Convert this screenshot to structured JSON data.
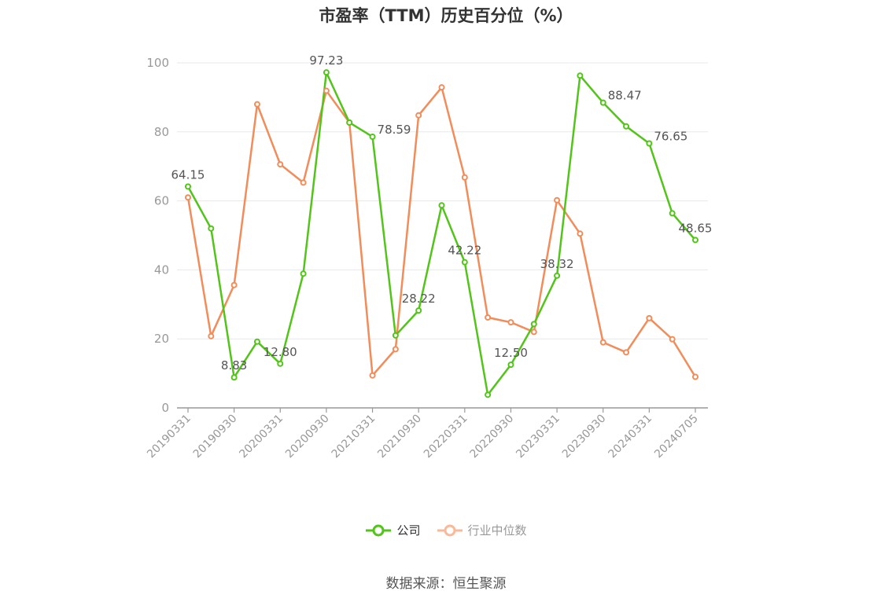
{
  "chart_data": {
    "type": "line",
    "title": "市盈率（TTM）历史百分位（%）",
    "xlabel": "",
    "ylabel": "",
    "ylim": [
      0,
      100
    ],
    "yticks": [
      0,
      20,
      40,
      60,
      80,
      100
    ],
    "x": [
      "20190331",
      "20190630",
      "20190930",
      "20191231",
      "20200331",
      "20200630",
      "20200930",
      "20201231",
      "20210331",
      "20210630",
      "20210930",
      "20211231",
      "20220331",
      "20220630",
      "20220930",
      "20221231",
      "20230331",
      "20230630",
      "20230930",
      "20231231",
      "20240331",
      "20240630",
      "20240705"
    ],
    "xticks_labeled": [
      "20190331",
      "20190930",
      "20200331",
      "20200930",
      "20210331",
      "20210930",
      "20220331",
      "20220930",
      "20230331",
      "20230930",
      "20240331",
      "20240705"
    ],
    "grid": true,
    "legend_position": "bottom",
    "series": [
      {
        "name": "公司",
        "color": "#52c41a",
        "values": [
          64.15,
          52.0,
          8.83,
          19.2,
          12.8,
          38.9,
          97.23,
          82.7,
          78.59,
          21.0,
          28.22,
          58.7,
          42.22,
          3.8,
          12.5,
          24.3,
          38.32,
          96.3,
          88.47,
          81.6,
          76.65,
          56.4,
          48.65
        ],
        "data_labels": [
          {
            "index": 0,
            "text": "64.15"
          },
          {
            "index": 2,
            "text": "8.83"
          },
          {
            "index": 4,
            "text": "12.80"
          },
          {
            "index": 6,
            "text": "97.23"
          },
          {
            "index": 8,
            "text": "78.59"
          },
          {
            "index": 10,
            "text": "28.22"
          },
          {
            "index": 12,
            "text": "42.22"
          },
          {
            "index": 14,
            "text": "12.50"
          },
          {
            "index": 16,
            "text": "38.32"
          },
          {
            "index": 18,
            "text": "88.47"
          },
          {
            "index": 20,
            "text": "76.65"
          },
          {
            "index": 22,
            "text": "48.65"
          }
        ]
      },
      {
        "name": "行业中位数",
        "color": "#f28c5a",
        "values": [
          61.0,
          20.8,
          35.6,
          88.0,
          70.6,
          65.3,
          91.9,
          82.7,
          9.4,
          17.0,
          84.8,
          92.9,
          66.8,
          26.2,
          24.8,
          22.0,
          60.2,
          50.5,
          19.0,
          16.1,
          26.0,
          19.9,
          9.0
        ]
      }
    ]
  },
  "legend": {
    "items": [
      {
        "label": "公司",
        "color": "#52c41a",
        "text_color": "#333333"
      },
      {
        "label": "行业中位数",
        "color": "#f9b99b",
        "text_color": "#999999"
      }
    ]
  },
  "source": "数据来源：恒生聚源"
}
